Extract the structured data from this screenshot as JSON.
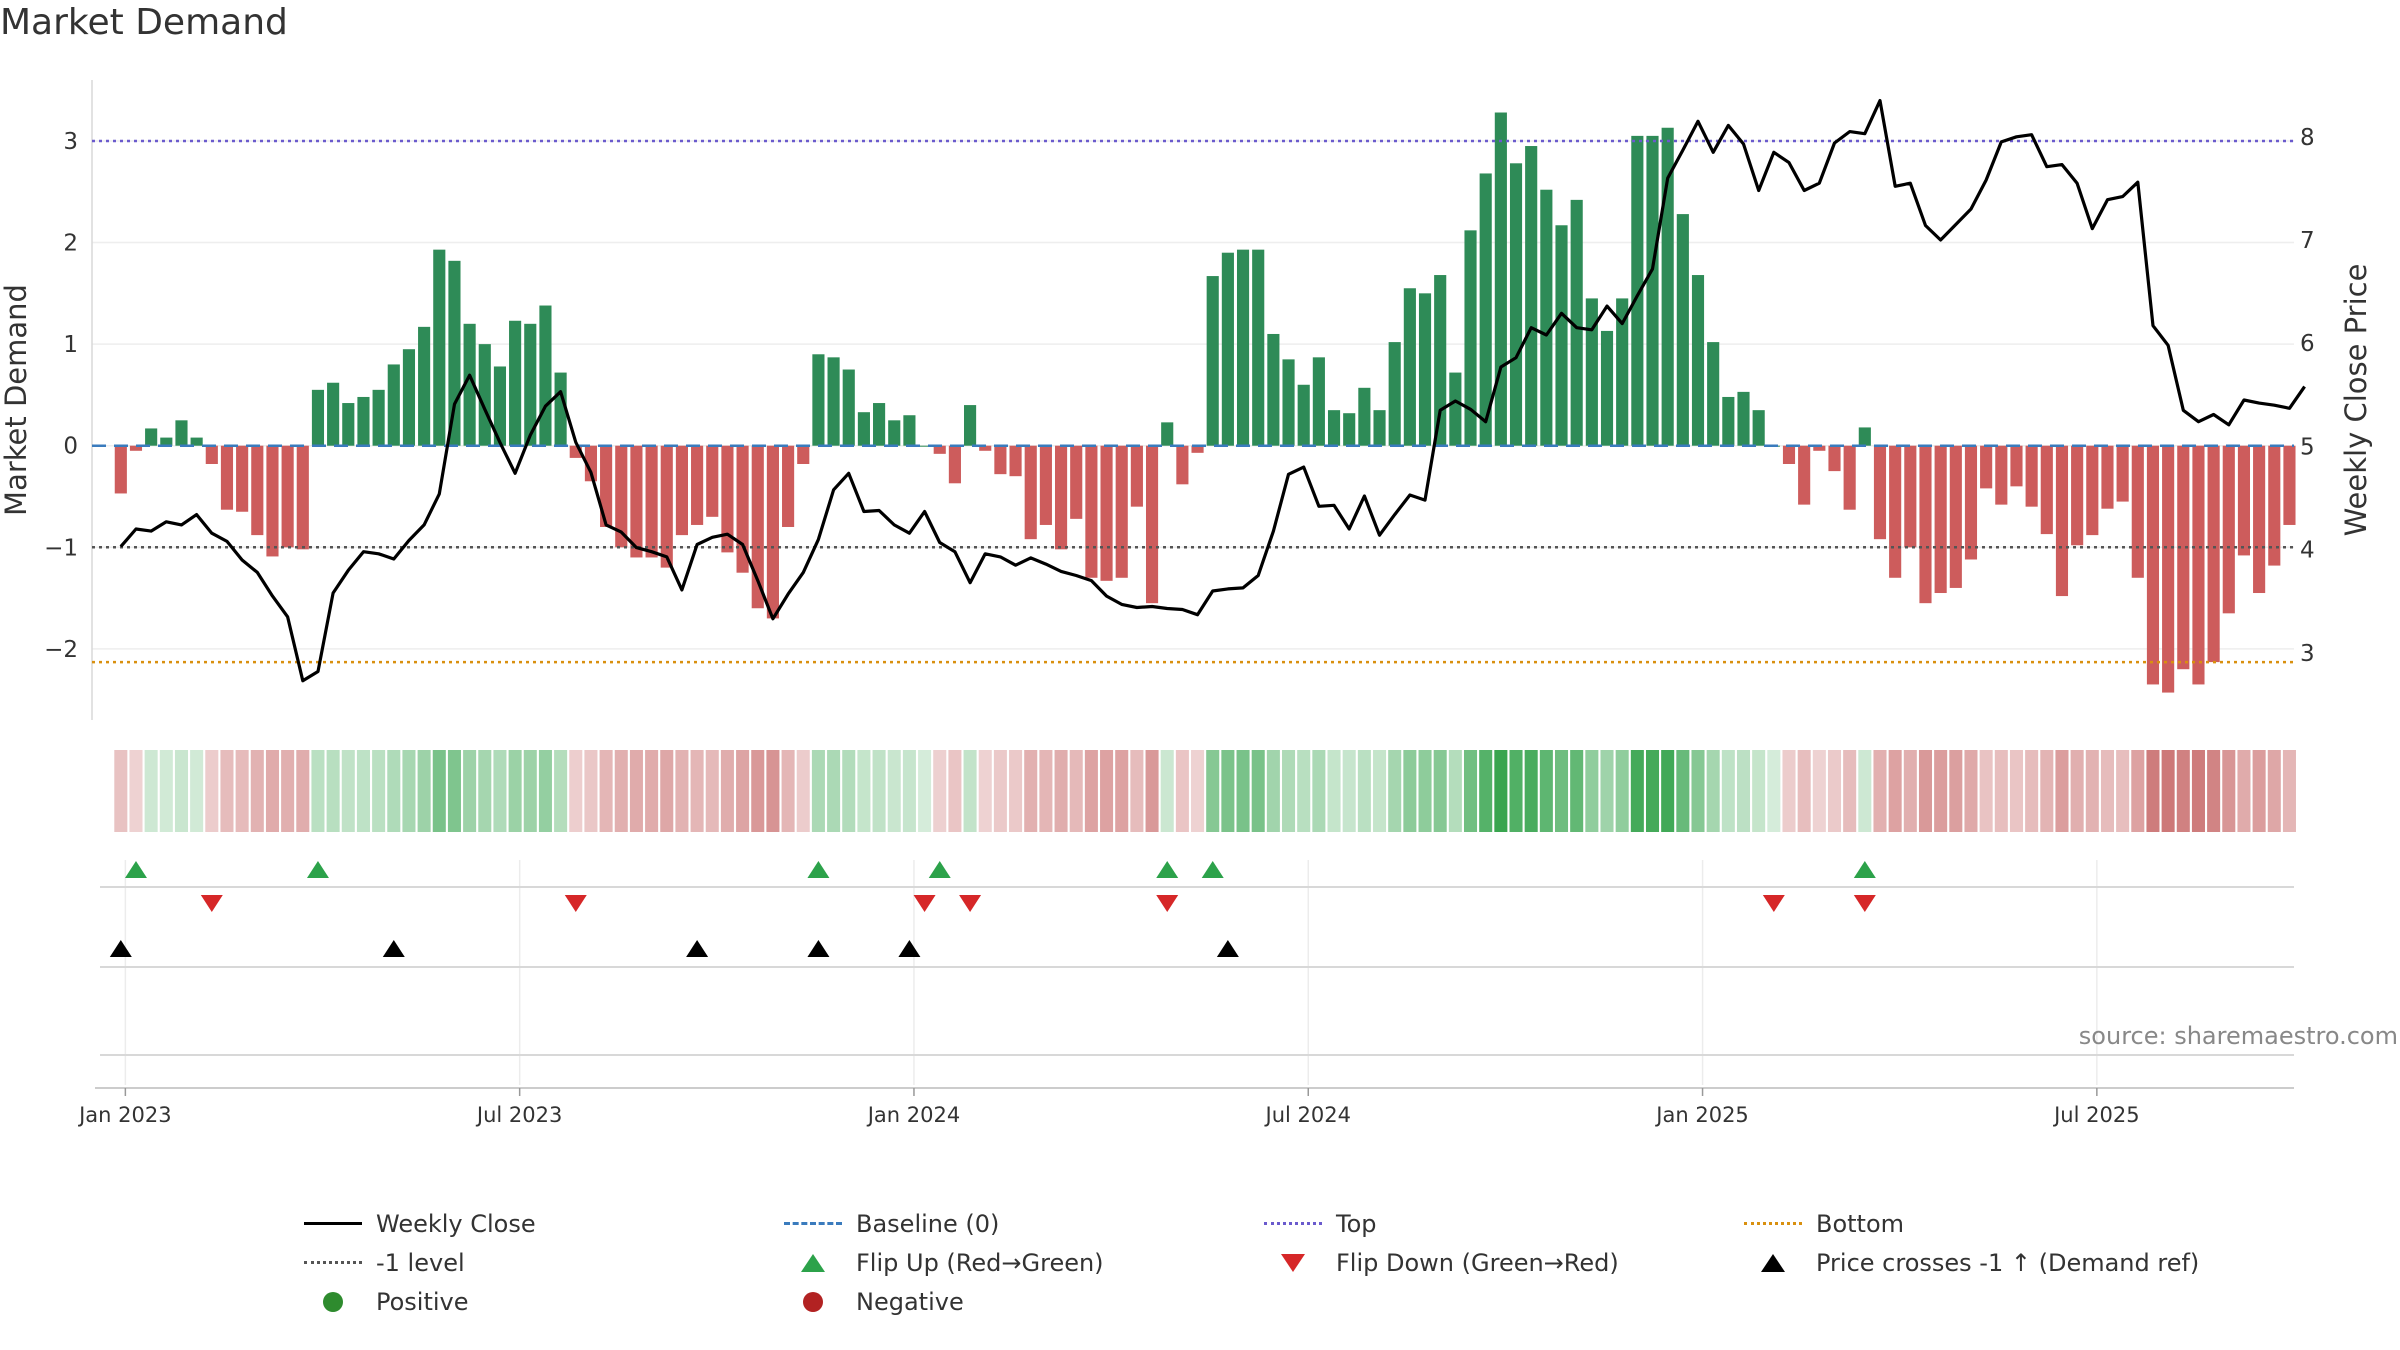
{
  "title": "Market Demand",
  "source": "source: sharemaestro.com",
  "colors": {
    "positive_bar": "#2e8b57",
    "negative_bar": "#cd5c5c",
    "close_line": "#000000",
    "baseline": "#3a7bbd",
    "top": "#6a5acd",
    "bottom": "#d9900f",
    "minus1": "#555555",
    "flip_up": "#2ca24a",
    "flip_down": "#d62728",
    "cross": "#000000",
    "legend_positive": "#2e8b2e",
    "legend_negative": "#b22222"
  },
  "legend": [
    {
      "label": "Weekly Close",
      "symbol": "line-solid"
    },
    {
      "label": "Baseline (0)",
      "symbol": "line-dash-blue"
    },
    {
      "label": "Top",
      "symbol": "line-dot-purple"
    },
    {
      "label": "Bottom",
      "symbol": "line-dot-orange"
    },
    {
      "label": "-1 level",
      "symbol": "line-dot-grey"
    },
    {
      "label": "Flip Up (Red→Green)",
      "symbol": "tri-up"
    },
    {
      "label": "Flip Down (Green→Red)",
      "symbol": "tri-down"
    },
    {
      "label": "Price crosses -1 ↑ (Demand ref)",
      "symbol": "tri-up black"
    },
    {
      "label": "Positive",
      "symbol": "dot-pos"
    },
    {
      "label": "Negative",
      "symbol": "dot-neg"
    }
  ],
  "chart_data": {
    "type": "bar",
    "title": "Market Demand",
    "ylabel": "Market Demand",
    "y2label": "Weekly Close Price",
    "ylim": [
      -2.7,
      3.6
    ],
    "y2lim": [
      2.35,
      8.55
    ],
    "yticks": [
      3,
      2,
      1,
      0,
      -1,
      -2
    ],
    "ytick_labels": [
      "3",
      "2",
      "1",
      "0",
      "−1",
      "−2"
    ],
    "y2ticks": [
      8,
      7,
      6,
      5,
      4,
      3
    ],
    "y2tick_labels": [
      "8",
      "7",
      "6",
      "5",
      "4",
      "3"
    ],
    "x_start_index": -1.9,
    "x_end_index": 143.3,
    "xticks": [
      0.3,
      26.3,
      52.3,
      78.3,
      104.3,
      130.3
    ],
    "xtick_labels": [
      "Jan 2023",
      "Jul 2023",
      "Jan 2024",
      "Jul 2024",
      "Jan 2025",
      "Jul 2025"
    ],
    "reference_lines": {
      "top": 3.0,
      "bottom": -2.13,
      "minus1": -1.0,
      "baseline": 0
    },
    "series": [
      {
        "name": "Market Demand",
        "values": [
          -0.47,
          -0.05,
          0.17,
          0.08,
          0.25,
          0.08,
          -0.18,
          -0.63,
          -0.65,
          -0.88,
          -1.09,
          -1.0,
          -1.02,
          0.55,
          0.62,
          0.42,
          0.48,
          0.55,
          0.8,
          0.95,
          1.17,
          1.93,
          1.82,
          1.2,
          1.0,
          0.78,
          1.23,
          1.2,
          1.38,
          0.72,
          -0.12,
          -0.35,
          -0.8,
          -1.0,
          -1.1,
          -1.1,
          -1.2,
          -0.88,
          -0.78,
          -0.7,
          -1.05,
          -1.25,
          -1.6,
          -1.7,
          -0.8,
          -0.18,
          0.9,
          0.87,
          0.75,
          0.33,
          0.42,
          0.25,
          0.3,
          0.0,
          -0.08,
          -0.37,
          0.4,
          -0.05,
          -0.28,
          -0.3,
          -0.92,
          -0.78,
          -1.02,
          -0.72,
          -1.3,
          -1.33,
          -1.3,
          -0.6,
          -1.55,
          0.23,
          -0.38,
          -0.07,
          1.67,
          1.9,
          1.93,
          1.93,
          1.1,
          0.85,
          0.6,
          0.87,
          0.35,
          0.32,
          0.57,
          0.35,
          1.02,
          1.55,
          1.5,
          1.68,
          0.72,
          2.12,
          2.68,
          3.28,
          2.78,
          2.95,
          2.52,
          2.17,
          2.42,
          1.45,
          1.13,
          1.45,
          3.05,
          3.05,
          3.13,
          2.28,
          1.68,
          1.02,
          0.48,
          0.53,
          0.35,
          0.0,
          -0.18,
          -0.58,
          -0.05,
          -0.25,
          -0.63,
          0.18,
          -0.92,
          -1.3,
          -1.0,
          -1.55,
          -1.45,
          -1.4,
          -1.12,
          -0.42,
          -0.58,
          -0.4,
          -0.6,
          -0.87,
          -1.48,
          -0.98,
          -0.88,
          -0.62,
          -0.55,
          -1.3,
          -2.35,
          -2.43,
          -2.2,
          -2.35,
          -2.13,
          -1.65,
          -1.08,
          -1.45,
          -1.18,
          -0.78
        ]
      },
      {
        "name": "Weekly Close",
        "values": [
          4.03,
          4.2,
          4.18,
          4.27,
          4.24,
          4.34,
          4.16,
          4.08,
          3.9,
          3.78,
          3.55,
          3.35,
          2.73,
          2.82,
          3.58,
          3.8,
          3.98,
          3.96,
          3.91,
          4.09,
          4.24,
          4.54,
          5.41,
          5.69,
          5.36,
          5.04,
          4.74,
          5.11,
          5.39,
          5.53,
          5.04,
          4.75,
          4.24,
          4.17,
          4.02,
          3.98,
          3.93,
          3.61,
          4.05,
          4.12,
          4.15,
          4.05,
          3.7,
          3.33,
          3.57,
          3.78,
          4.1,
          4.58,
          4.74,
          4.37,
          4.38,
          4.24,
          4.16,
          4.37,
          4.07,
          3.98,
          3.68,
          3.96,
          3.93,
          3.85,
          3.92,
          3.86,
          3.79,
          3.75,
          3.7,
          3.55,
          3.47,
          3.44,
          3.45,
          3.43,
          3.42,
          3.37,
          3.6,
          3.62,
          3.63,
          3.75,
          4.18,
          4.73,
          4.8,
          4.42,
          4.43,
          4.2,
          4.52,
          4.14,
          4.34,
          4.53,
          4.48,
          5.35,
          5.44,
          5.36,
          5.24,
          5.77,
          5.86,
          6.15,
          6.08,
          6.29,
          6.15,
          6.13,
          6.36,
          6.19,
          6.46,
          6.72,
          7.6,
          7.87,
          8.15,
          7.85,
          8.11,
          7.93,
          7.48,
          7.85,
          7.75,
          7.48,
          7.55,
          7.94,
          8.05,
          8.03,
          8.35,
          7.52,
          7.55,
          7.14,
          7.0,
          7.15,
          7.3,
          7.58,
          7.95,
          8.0,
          8.02,
          7.71,
          7.73,
          7.55,
          7.11,
          7.39,
          7.42,
          7.56,
          6.17,
          5.98,
          5.35,
          5.24,
          5.31,
          5.21,
          5.45,
          5.42,
          5.4,
          5.37,
          5.58
        ]
      }
    ],
    "flip_up_indices": [
      1,
      13,
      46,
      54,
      69,
      72,
      115
    ],
    "flip_down_indices": [
      6,
      30,
      53,
      56,
      69,
      109,
      115
    ],
    "price_cross_indices": [
      0,
      18,
      38,
      46,
      52,
      73
    ]
  }
}
